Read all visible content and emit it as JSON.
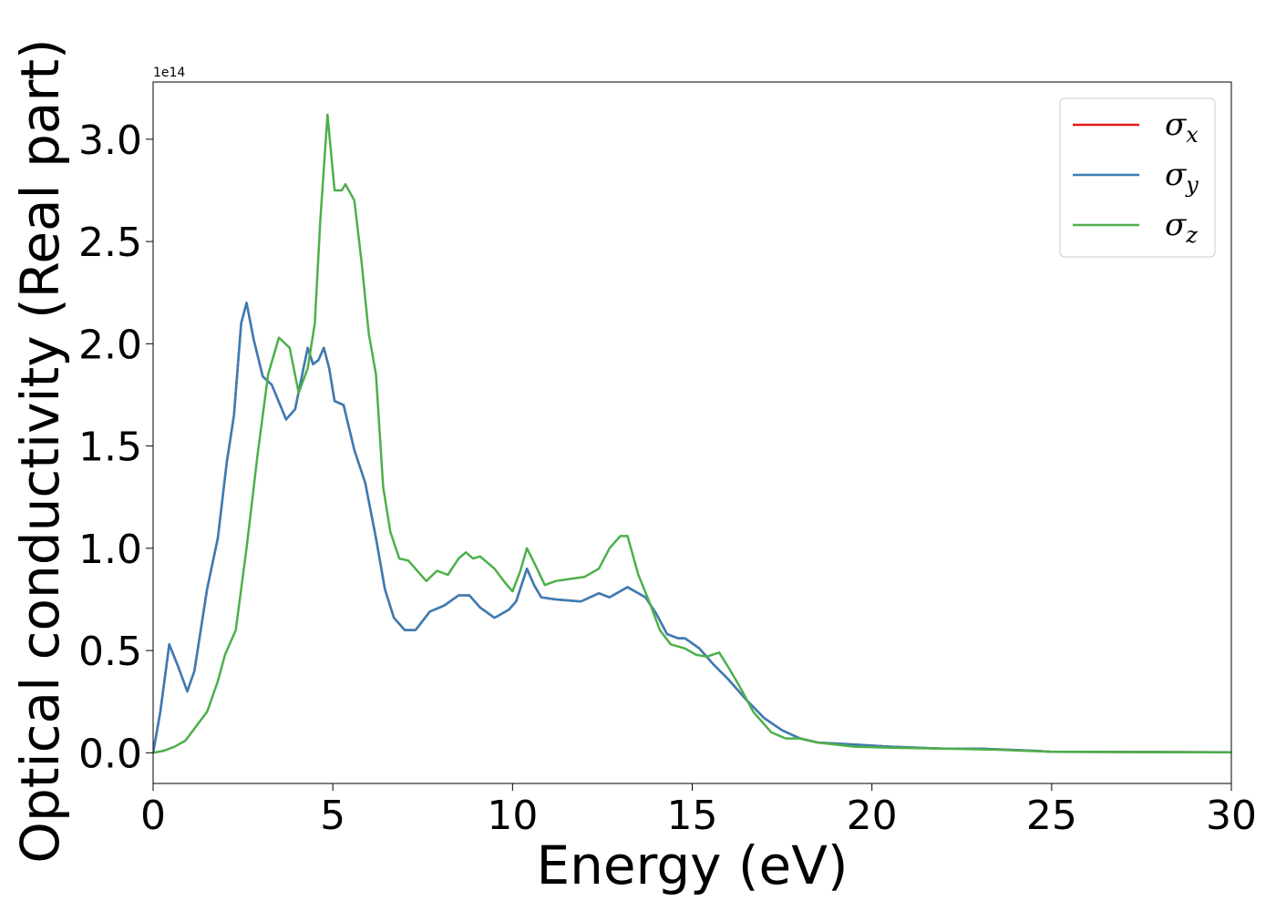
{
  "chart_data": {
    "type": "line",
    "title": "",
    "xlabel": "Energy (eV)",
    "ylabel": "Optical conductivity (Real part)",
    "y_offset_label": "1e14",
    "xlim": [
      0,
      30
    ],
    "ylim": [
      -0.15,
      3.28
    ],
    "xticks": [
      0,
      5,
      10,
      15,
      20,
      25,
      30
    ],
    "xtick_labels": [
      "0",
      "5",
      "10",
      "15",
      "20",
      "25",
      "30"
    ],
    "yticks": [
      0.0,
      0.5,
      1.0,
      1.5,
      2.0,
      2.5,
      3.0
    ],
    "ytick_labels": [
      "0.0",
      "0.5",
      "1.0",
      "1.5",
      "2.0",
      "2.5",
      "3.0"
    ],
    "grid": false,
    "legend_position": "top-right",
    "series": [
      {
        "name": "σx",
        "base": "σ",
        "sub": "x",
        "color": "#e41a1c",
        "points": [
          [
            0,
            0
          ],
          [
            0.2,
            0.2
          ],
          [
            0.45,
            0.53
          ],
          [
            0.7,
            0.42
          ],
          [
            0.95,
            0.3
          ],
          [
            1.15,
            0.4
          ],
          [
            1.5,
            0.8
          ],
          [
            1.8,
            1.05
          ],
          [
            2.05,
            1.42
          ],
          [
            2.25,
            1.65
          ],
          [
            2.45,
            2.1
          ],
          [
            2.6,
            2.2
          ],
          [
            2.8,
            2.02
          ],
          [
            3.05,
            1.84
          ],
          [
            3.3,
            1.8
          ],
          [
            3.7,
            1.63
          ],
          [
            3.95,
            1.68
          ],
          [
            4.15,
            1.85
          ],
          [
            4.3,
            1.98
          ],
          [
            4.45,
            1.9
          ],
          [
            4.6,
            1.92
          ],
          [
            4.75,
            1.98
          ],
          [
            4.9,
            1.88
          ],
          [
            5.05,
            1.72
          ],
          [
            5.3,
            1.7
          ],
          [
            5.6,
            1.48
          ],
          [
            5.9,
            1.32
          ],
          [
            6.2,
            1.05
          ],
          [
            6.45,
            0.8
          ],
          [
            6.7,
            0.66
          ],
          [
            7.0,
            0.6
          ],
          [
            7.3,
            0.6
          ],
          [
            7.7,
            0.69
          ],
          [
            8.1,
            0.72
          ],
          [
            8.5,
            0.77
          ],
          [
            8.8,
            0.77
          ],
          [
            9.1,
            0.71
          ],
          [
            9.5,
            0.66
          ],
          [
            9.9,
            0.7
          ],
          [
            10.1,
            0.74
          ],
          [
            10.4,
            0.9
          ],
          [
            10.6,
            0.82
          ],
          [
            10.8,
            0.76
          ],
          [
            11.2,
            0.75
          ],
          [
            11.9,
            0.74
          ],
          [
            12.4,
            0.78
          ],
          [
            12.7,
            0.76
          ],
          [
            13.2,
            0.81
          ],
          [
            13.7,
            0.76
          ],
          [
            14.0,
            0.68
          ],
          [
            14.3,
            0.58
          ],
          [
            14.6,
            0.56
          ],
          [
            14.8,
            0.56
          ],
          [
            15.2,
            0.51
          ],
          [
            15.6,
            0.43
          ],
          [
            16.0,
            0.36
          ],
          [
            16.5,
            0.26
          ],
          [
            17.0,
            0.17
          ],
          [
            17.5,
            0.11
          ],
          [
            18.0,
            0.07
          ],
          [
            18.5,
            0.05
          ],
          [
            19.5,
            0.04
          ],
          [
            20.5,
            0.03
          ],
          [
            22.0,
            0.02
          ],
          [
            23.0,
            0.02
          ],
          [
            24.5,
            0.01
          ],
          [
            25.0,
            0.005
          ],
          [
            30,
            0.003
          ]
        ]
      },
      {
        "name": "σy",
        "base": "σ",
        "sub": "y",
        "color": "#377eb8",
        "points": [
          [
            0,
            0
          ],
          [
            0.2,
            0.2
          ],
          [
            0.45,
            0.53
          ],
          [
            0.7,
            0.42
          ],
          [
            0.95,
            0.3
          ],
          [
            1.15,
            0.4
          ],
          [
            1.5,
            0.8
          ],
          [
            1.8,
            1.05
          ],
          [
            2.05,
            1.42
          ],
          [
            2.25,
            1.65
          ],
          [
            2.45,
            2.1
          ],
          [
            2.6,
            2.2
          ],
          [
            2.8,
            2.02
          ],
          [
            3.05,
            1.84
          ],
          [
            3.3,
            1.8
          ],
          [
            3.7,
            1.63
          ],
          [
            3.95,
            1.68
          ],
          [
            4.15,
            1.85
          ],
          [
            4.3,
            1.98
          ],
          [
            4.45,
            1.9
          ],
          [
            4.6,
            1.92
          ],
          [
            4.75,
            1.98
          ],
          [
            4.9,
            1.88
          ],
          [
            5.05,
            1.72
          ],
          [
            5.3,
            1.7
          ],
          [
            5.6,
            1.48
          ],
          [
            5.9,
            1.32
          ],
          [
            6.2,
            1.05
          ],
          [
            6.45,
            0.8
          ],
          [
            6.7,
            0.66
          ],
          [
            7.0,
            0.6
          ],
          [
            7.3,
            0.6
          ],
          [
            7.7,
            0.69
          ],
          [
            8.1,
            0.72
          ],
          [
            8.5,
            0.77
          ],
          [
            8.8,
            0.77
          ],
          [
            9.1,
            0.71
          ],
          [
            9.5,
            0.66
          ],
          [
            9.9,
            0.7
          ],
          [
            10.1,
            0.74
          ],
          [
            10.4,
            0.9
          ],
          [
            10.6,
            0.82
          ],
          [
            10.8,
            0.76
          ],
          [
            11.2,
            0.75
          ],
          [
            11.9,
            0.74
          ],
          [
            12.4,
            0.78
          ],
          [
            12.7,
            0.76
          ],
          [
            13.2,
            0.81
          ],
          [
            13.7,
            0.76
          ],
          [
            14.0,
            0.68
          ],
          [
            14.3,
            0.58
          ],
          [
            14.6,
            0.56
          ],
          [
            14.8,
            0.56
          ],
          [
            15.2,
            0.51
          ],
          [
            15.6,
            0.43
          ],
          [
            16.0,
            0.36
          ],
          [
            16.5,
            0.26
          ],
          [
            17.0,
            0.17
          ],
          [
            17.5,
            0.11
          ],
          [
            18.0,
            0.07
          ],
          [
            18.5,
            0.05
          ],
          [
            19.5,
            0.04
          ],
          [
            20.5,
            0.03
          ],
          [
            22.0,
            0.02
          ],
          [
            23.0,
            0.02
          ],
          [
            24.5,
            0.01
          ],
          [
            25.0,
            0.005
          ],
          [
            30,
            0.003
          ]
        ]
      },
      {
        "name": "σz",
        "base": "σ",
        "sub": "z",
        "color": "#4daf4a",
        "points": [
          [
            0,
            0
          ],
          [
            0.3,
            0.01
          ],
          [
            0.6,
            0.03
          ],
          [
            0.9,
            0.06
          ],
          [
            1.2,
            0.13
          ],
          [
            1.5,
            0.2
          ],
          [
            1.8,
            0.35
          ],
          [
            2.0,
            0.48
          ],
          [
            2.3,
            0.6
          ],
          [
            2.6,
            1.0
          ],
          [
            2.9,
            1.45
          ],
          [
            3.2,
            1.85
          ],
          [
            3.5,
            2.03
          ],
          [
            3.8,
            1.98
          ],
          [
            4.05,
            1.76
          ],
          [
            4.3,
            1.88
          ],
          [
            4.5,
            2.1
          ],
          [
            4.65,
            2.6
          ],
          [
            4.85,
            3.12
          ],
          [
            5.05,
            2.75
          ],
          [
            5.25,
            2.75
          ],
          [
            5.35,
            2.78
          ],
          [
            5.6,
            2.7
          ],
          [
            5.8,
            2.4
          ],
          [
            6.0,
            2.05
          ],
          [
            6.2,
            1.85
          ],
          [
            6.4,
            1.3
          ],
          [
            6.6,
            1.08
          ],
          [
            6.85,
            0.95
          ],
          [
            7.1,
            0.94
          ],
          [
            7.4,
            0.88
          ],
          [
            7.6,
            0.84
          ],
          [
            7.9,
            0.89
          ],
          [
            8.2,
            0.87
          ],
          [
            8.5,
            0.95
          ],
          [
            8.7,
            0.98
          ],
          [
            8.9,
            0.95
          ],
          [
            9.1,
            0.96
          ],
          [
            9.5,
            0.9
          ],
          [
            9.8,
            0.83
          ],
          [
            10.0,
            0.79
          ],
          [
            10.2,
            0.88
          ],
          [
            10.4,
            1.0
          ],
          [
            10.6,
            0.93
          ],
          [
            10.9,
            0.82
          ],
          [
            11.2,
            0.84
          ],
          [
            11.6,
            0.85
          ],
          [
            12.0,
            0.86
          ],
          [
            12.4,
            0.9
          ],
          [
            12.7,
            1.0
          ],
          [
            13.0,
            1.06
          ],
          [
            13.2,
            1.06
          ],
          [
            13.5,
            0.87
          ],
          [
            13.8,
            0.74
          ],
          [
            14.1,
            0.6
          ],
          [
            14.4,
            0.53
          ],
          [
            14.8,
            0.51
          ],
          [
            15.1,
            0.48
          ],
          [
            15.4,
            0.47
          ],
          [
            15.75,
            0.49
          ],
          [
            16.0,
            0.42
          ],
          [
            16.3,
            0.33
          ],
          [
            16.7,
            0.2
          ],
          [
            17.2,
            0.1
          ],
          [
            17.6,
            0.07
          ],
          [
            18.0,
            0.07
          ],
          [
            18.5,
            0.05
          ],
          [
            19.5,
            0.03
          ],
          [
            20.5,
            0.025
          ],
          [
            22.0,
            0.02
          ],
          [
            23.5,
            0.015
          ],
          [
            25.0,
            0.005
          ],
          [
            30,
            0.002
          ]
        ]
      }
    ]
  }
}
